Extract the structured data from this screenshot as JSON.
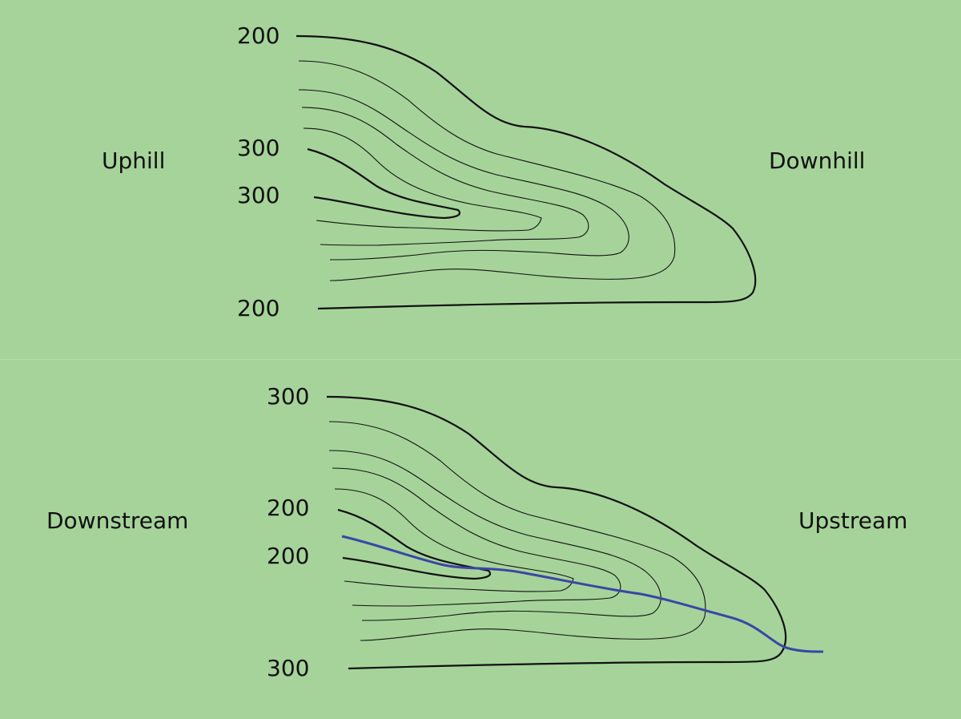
{
  "top_panel": {
    "left_label": "Uphill",
    "right_label": "Downhill",
    "contour_labels": [
      "200",
      "300",
      "300",
      "200"
    ]
  },
  "bottom_panel": {
    "left_label": "Downstream",
    "right_label": "Upstream",
    "contour_labels": [
      "300",
      "200",
      "200",
      "300"
    ]
  },
  "colors": {
    "background": "#a6d39a",
    "contour": "#111111",
    "stream": "#3a46a6"
  }
}
